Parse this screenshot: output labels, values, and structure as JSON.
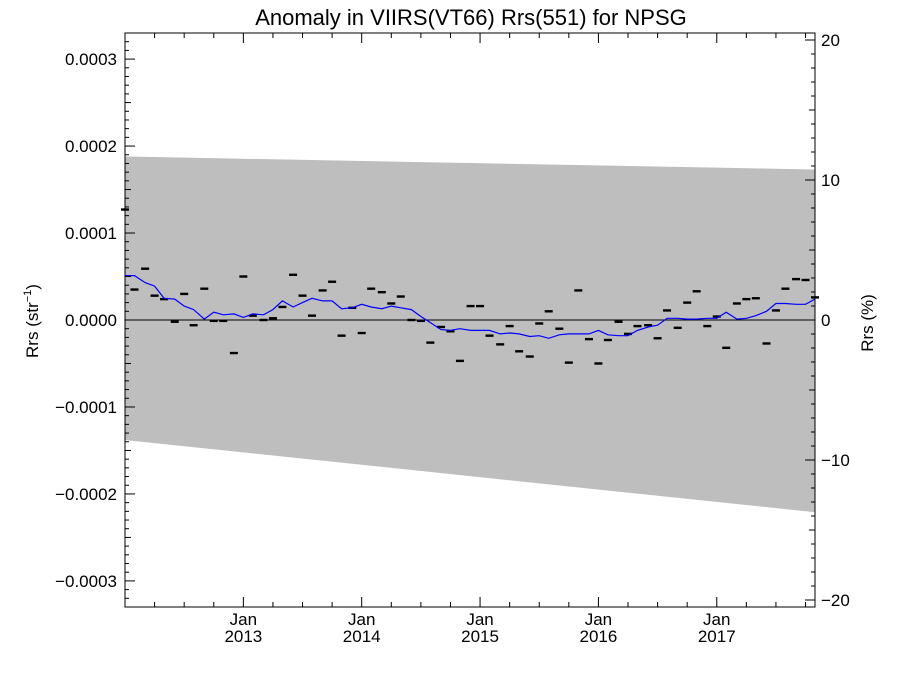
{
  "chart_data": {
    "type": "line",
    "title": "Anomaly in VIIRS(VT66) Rrs(551) for NPSG",
    "ylabel": "Rrs (str⁻¹)",
    "ylabel_parts": {
      "base": "Rrs (str",
      "sup": "−1",
      "close": ")"
    },
    "y2label": "Rrs (%)",
    "xlim": [
      2012.0,
      2017.83
    ],
    "ylim": [
      -0.00033,
      0.00033
    ],
    "y2lim": [
      -20.5,
      20.5
    ],
    "grid": false,
    "legend": "none",
    "x_ticks": [
      {
        "x": 2013.0,
        "month": "Jan",
        "year": "2013"
      },
      {
        "x": 2014.0,
        "month": "Jan",
        "year": "2014"
      },
      {
        "x": 2015.0,
        "month": "Jan",
        "year": "2015"
      },
      {
        "x": 2016.0,
        "month": "Jan",
        "year": "2016"
      },
      {
        "x": 2017.0,
        "month": "Jan",
        "year": "2017"
      }
    ],
    "y_ticks": [
      {
        "value": 0.0003,
        "label": "0.0003"
      },
      {
        "value": 0.0002,
        "label": "0.0002"
      },
      {
        "value": 0.0001,
        "label": "0.0001"
      },
      {
        "value": 0.0,
        "label": "0.0000"
      },
      {
        "value": -0.0001,
        "label": "−0.0001"
      },
      {
        "value": -0.0002,
        "label": "−0.0002"
      },
      {
        "value": -0.0003,
        "label": "−0.0003"
      }
    ],
    "y2_ticks": [
      {
        "value": 20,
        "label": "20"
      },
      {
        "value": 10,
        "label": "10"
      },
      {
        "value": 0,
        "label": "0"
      },
      {
        "value": -10,
        "label": "−10"
      },
      {
        "value": -20,
        "label": "−20"
      }
    ],
    "uncertainty_band": {
      "x": [
        2012.0,
        2017.83
      ],
      "upper": [
        0.000188,
        0.000173
      ],
      "lower": [
        -0.000138,
        -0.000221
      ],
      "color": "#bebebe"
    },
    "zero_line": 0.0,
    "series": [
      {
        "kind": "monthly_anomaly",
        "marker": "dash",
        "color": "#000000",
        "x": [
          2012.0,
          2012.08,
          2012.17,
          2012.25,
          2012.33,
          2012.42,
          2012.5,
          2012.58,
          2012.67,
          2012.75,
          2012.83,
          2012.92,
          2013.0,
          2013.08,
          2013.17,
          2013.25,
          2013.33,
          2013.42,
          2013.5,
          2013.58,
          2013.67,
          2013.75,
          2013.83,
          2013.92,
          2014.0,
          2014.08,
          2014.17,
          2014.25,
          2014.33,
          2014.42,
          2014.5,
          2014.58,
          2014.67,
          2014.75,
          2014.83,
          2014.92,
          2015.0,
          2015.08,
          2015.17,
          2015.25,
          2015.33,
          2015.42,
          2015.5,
          2015.58,
          2015.67,
          2015.75,
          2015.83,
          2015.92,
          2016.0,
          2016.08,
          2016.17,
          2016.25,
          2016.33,
          2016.42,
          2016.5,
          2016.58,
          2016.67,
          2016.75,
          2016.83,
          2016.92,
          2017.0,
          2017.08,
          2017.17,
          2017.25,
          2017.33,
          2017.42,
          2017.5,
          2017.58,
          2017.67,
          2017.75,
          2017.83
        ],
        "values": [
          0.000127,
          3.5e-05,
          5.9e-05,
          2.8e-05,
          2.4e-05,
          -2e-06,
          3e-05,
          -6e-06,
          3.6e-05,
          -1e-06,
          -1e-06,
          -3.8e-05,
          5e-05,
          5e-06,
          0.0,
          2e-06,
          1.5e-05,
          5.2e-05,
          2.8e-05,
          5e-06,
          3.4e-05,
          4.4e-05,
          -1.8e-05,
          1.4e-05,
          -1.5e-05,
          3.6e-05,
          3.2e-05,
          1.9e-05,
          2.7e-05,
          0.0,
          -1e-06,
          -2.6e-05,
          -8e-06,
          -1.3e-05,
          -4.7e-05,
          1.6e-05,
          1.6e-05,
          -1.8e-05,
          -2.8e-05,
          -7e-06,
          -3.6e-05,
          -4.2e-05,
          -4e-06,
          1e-05,
          -1e-05,
          -4.9e-05,
          3.4e-05,
          -2.2e-05,
          -5e-05,
          -2.3e-05,
          -2e-06,
          -1.6e-05,
          -7e-06,
          -6e-06,
          -2.1e-05,
          1.1e-05,
          -9e-06,
          2e-05,
          3.3e-05,
          -7e-06,
          4e-06,
          -3.2e-05,
          1.9e-05,
          2.4e-05,
          2.5e-05,
          -2.7e-05,
          1.1e-05,
          3.6e-05,
          4.7e-05,
          4.6e-05,
          2.6e-05
        ]
      },
      {
        "kind": "running_mean",
        "marker": "none",
        "color": "#0000ff",
        "x": [
          2012.0,
          2012.08,
          2012.17,
          2012.25,
          2012.33,
          2012.42,
          2012.5,
          2012.58,
          2012.67,
          2012.75,
          2012.83,
          2012.92,
          2013.0,
          2013.08,
          2013.17,
          2013.25,
          2013.33,
          2013.42,
          2013.5,
          2013.58,
          2013.67,
          2013.75,
          2013.83,
          2013.92,
          2014.0,
          2014.08,
          2014.17,
          2014.25,
          2014.33,
          2014.42,
          2014.5,
          2014.58,
          2014.67,
          2014.75,
          2014.83,
          2014.92,
          2015.0,
          2015.08,
          2015.17,
          2015.25,
          2015.33,
          2015.42,
          2015.5,
          2015.58,
          2015.67,
          2015.75,
          2015.83,
          2015.92,
          2016.0,
          2016.08,
          2016.17,
          2016.25,
          2016.33,
          2016.42,
          2016.5,
          2016.58,
          2016.67,
          2016.75,
          2016.83,
          2016.92,
          2017.0,
          2017.08,
          2017.17,
          2017.25,
          2017.33,
          2017.42,
          2017.5,
          2017.58,
          2017.67,
          2017.75,
          2017.83
        ],
        "values": [
          5.1e-05,
          5.1e-05,
          4.3e-05,
          3.9e-05,
          2.5e-05,
          2.4e-05,
          1.6e-05,
          1.2e-05,
          1e-06,
          9e-06,
          6e-06,
          7e-06,
          3e-06,
          7e-06,
          6e-06,
          1.2e-05,
          2.2e-05,
          1.5e-05,
          2e-05,
          2.5e-05,
          2.2e-05,
          2.2e-05,
          1.3e-05,
          1.4e-05,
          1.8e-05,
          1.5e-05,
          1.3e-05,
          1.6e-05,
          1.4e-05,
          1.2e-05,
          4e-06,
          -3e-06,
          -1.1e-05,
          -1.2e-05,
          -1e-05,
          -1.2e-05,
          -1.2e-05,
          -1.2e-05,
          -1.6e-05,
          -1.5e-05,
          -1.6e-05,
          -1.9e-05,
          -1.8e-05,
          -2.1e-05,
          -1.7e-05,
          -1.6e-05,
          -1.6e-05,
          -1.6e-05,
          -1.2e-05,
          -1.7e-05,
          -1.8e-05,
          -1.8e-05,
          -1.2e-05,
          -8e-06,
          -6e-06,
          2e-06,
          2e-06,
          1e-06,
          1e-06,
          2e-06,
          2e-06,
          9e-06,
          1e-06,
          2e-06,
          5e-06,
          1e-05,
          1.9e-05,
          1.9e-05,
          1.8e-05,
          1.8e-05,
          2.4e-05
        ]
      }
    ]
  }
}
